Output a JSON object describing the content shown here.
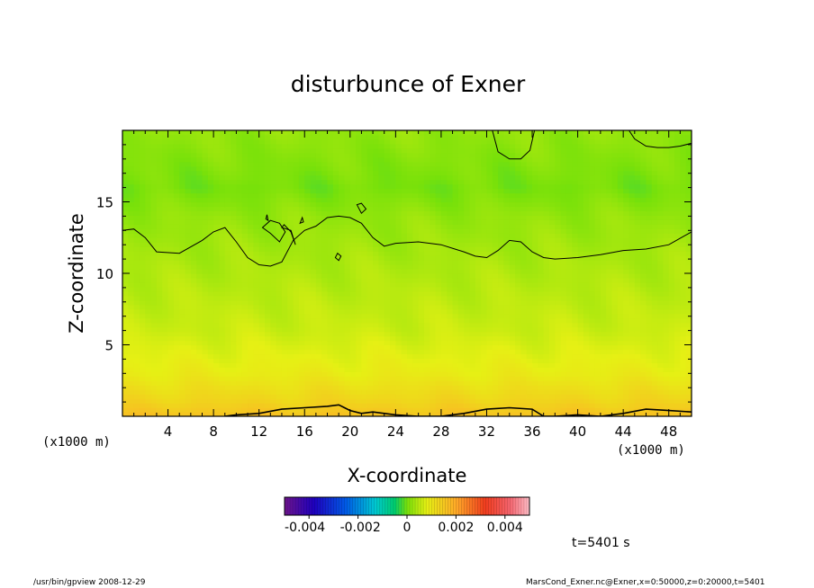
{
  "chart_data": {
    "type": "heatmap",
    "title": "disturbunce of Exner",
    "xlabel": "X-coordinate",
    "ylabel": "Z-coordinate",
    "x_unit": "(x1000 m)",
    "y_unit": "(x1000 m)",
    "xlim": [
      0,
      50
    ],
    "ylim": [
      0,
      20
    ],
    "x_ticks": [
      4,
      8,
      12,
      16,
      20,
      24,
      28,
      32,
      36,
      40,
      44,
      48
    ],
    "y_ticks": [
      5,
      10,
      15
    ],
    "colorbar": {
      "min": -0.005,
      "max": 0.005,
      "ticks": [
        {
          "value": -0.004,
          "label": "-0.004"
        },
        {
          "value": -0.002,
          "label": "-0.002"
        },
        {
          "value": 0,
          "label": "0"
        },
        {
          "value": 0.002,
          "label": "0.002"
        },
        {
          "value": 0.004,
          "label": "0.004"
        }
      ]
    },
    "field_profile": {
      "z": [
        0,
        1,
        2,
        3,
        4,
        5,
        6,
        8,
        10,
        12,
        14,
        16,
        18,
        20
      ],
      "value": [
        0.0016,
        0.0013,
        0.0011,
        0.0009,
        0.0008,
        0.0007,
        0.0006,
        0.0005,
        0.0004,
        0.0003,
        0.0002,
        0.0,
        0.0001,
        0.0002
      ]
    },
    "contour": {
      "level": 0,
      "main_line": {
        "x": [
          0,
          1,
          2,
          3,
          5,
          7,
          8,
          9,
          10,
          11,
          12,
          13,
          14,
          15,
          16,
          17,
          18,
          19,
          20,
          21,
          22,
          23,
          24,
          26,
          28,
          30,
          31,
          32,
          33,
          34,
          35,
          36,
          37,
          38,
          40,
          42,
          44,
          46,
          48,
          50
        ],
        "z": [
          13.0,
          13.1,
          12.5,
          11.5,
          11.4,
          12.3,
          12.9,
          13.2,
          12.2,
          11.1,
          10.6,
          10.5,
          10.8,
          12.3,
          13.0,
          13.3,
          13.9,
          14.0,
          13.9,
          13.5,
          12.5,
          11.9,
          12.1,
          12.2,
          12.0,
          11.5,
          11.2,
          11.1,
          11.6,
          12.3,
          12.2,
          11.5,
          11.1,
          11.0,
          11.1,
          11.3,
          11.6,
          11.7,
          12.0,
          12.9
        ]
      },
      "top_right_line": {
        "x": [
          44.5,
          45,
          46,
          47,
          48,
          49,
          50
        ],
        "z": [
          20.0,
          19.4,
          18.9,
          18.8,
          18.8,
          18.9,
          19.1
        ]
      },
      "top_bump": {
        "x": [
          32.5,
          33,
          34,
          35,
          35.8,
          36.2
        ],
        "z": [
          20.0,
          18.5,
          18.0,
          18.0,
          18.6,
          20.0
        ]
      },
      "bottom_line": {
        "x": [
          9,
          10,
          12,
          14,
          16,
          18,
          19,
          20,
          21,
          22,
          24,
          26,
          28,
          30,
          32,
          34,
          36,
          37,
          38,
          40,
          42,
          44,
          46,
          48,
          50
        ],
        "z": [
          0.0,
          0.1,
          0.2,
          0.5,
          0.6,
          0.7,
          0.8,
          0.4,
          0.2,
          0.3,
          0.1,
          0.0,
          0.0,
          0.2,
          0.5,
          0.6,
          0.5,
          0.0,
          0.0,
          0.1,
          0.0,
          0.2,
          0.5,
          0.4,
          0.3
        ]
      },
      "blobs": [
        {
          "x": [
            12.3,
            13.0,
            13.8,
            14.3,
            13.8,
            13.0,
            12.3
          ],
          "z": [
            13.2,
            12.8,
            12.2,
            12.9,
            13.5,
            13.7,
            13.2
          ]
        },
        {
          "x": [
            14.0,
            14.8,
            15.2,
            14.8,
            14.2,
            14.0
          ],
          "z": [
            13.2,
            13.0,
            12.0,
            12.9,
            13.4,
            13.2
          ]
        },
        {
          "x": [
            20.6,
            21.0,
            21.4,
            21.0,
            20.6
          ],
          "z": [
            14.8,
            14.2,
            14.5,
            14.9,
            14.8
          ]
        },
        {
          "x": [
            18.7,
            19.0,
            19.2,
            18.9,
            18.7
          ],
          "z": [
            11.1,
            10.9,
            11.2,
            11.4,
            11.1
          ]
        },
        {
          "x": [
            12.6,
            12.8,
            12.7,
            12.6
          ],
          "z": [
            13.8,
            13.7,
            14.1,
            13.8
          ]
        },
        {
          "x": [
            15.6,
            15.9,
            15.8,
            15.6
          ],
          "z": [
            13.5,
            13.6,
            13.9,
            13.5
          ]
        }
      ]
    },
    "annotation": "t=5401 s",
    "footer_left": "/usr/bin/gpview   2008-12-29",
    "footer_right": "MarsCond_Exner.nc@Exner,x=0:50000,z=0:20000,t=5401"
  }
}
